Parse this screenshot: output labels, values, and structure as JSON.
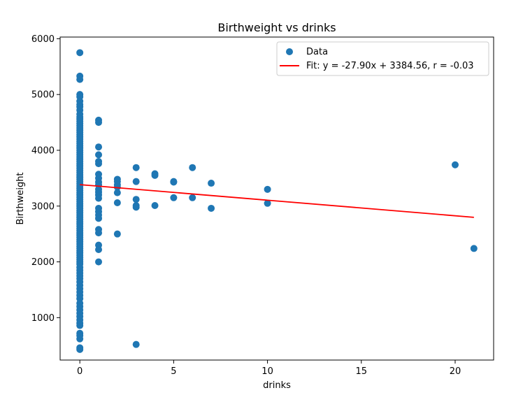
{
  "chart_data": {
    "type": "scatter",
    "title": "Birthweight vs drinks",
    "xlabel": "drinks",
    "ylabel": "Birthweight",
    "xlim": [
      -1.05,
      22.05
    ],
    "ylim": [
      240,
      6030
    ],
    "xticks": [
      0,
      5,
      10,
      15,
      20
    ],
    "yticks": [
      1000,
      2000,
      3000,
      4000,
      5000,
      6000
    ],
    "grid": false,
    "legend_position": "top-right",
    "colors": {
      "scatter": "#1f77b4",
      "fit": "#ff0000"
    },
    "series": [
      {
        "name": "Data",
        "kind": "scatter",
        "points": [
          [
            0,
            5750
          ],
          [
            0,
            5330
          ],
          [
            0,
            5270
          ],
          [
            0,
            5000
          ],
          [
            0,
            4960
          ],
          [
            0,
            4880
          ],
          [
            0,
            4820
          ],
          [
            0,
            4780
          ],
          [
            0,
            4720
          ],
          [
            0,
            4650
          ],
          [
            0,
            4600
          ],
          [
            0,
            4560
          ],
          [
            0,
            4520
          ],
          [
            0,
            4480
          ],
          [
            0,
            4440
          ],
          [
            0,
            4400
          ],
          [
            0,
            4360
          ],
          [
            0,
            4320
          ],
          [
            0,
            4280
          ],
          [
            0,
            4240
          ],
          [
            0,
            4200
          ],
          [
            0,
            4160
          ],
          [
            0,
            4120
          ],
          [
            0,
            4080
          ],
          [
            0,
            4040
          ],
          [
            0,
            4000
          ],
          [
            0,
            3960
          ],
          [
            0,
            3920
          ],
          [
            0,
            3880
          ],
          [
            0,
            3840
          ],
          [
            0,
            3800
          ],
          [
            0,
            3760
          ],
          [
            0,
            3720
          ],
          [
            0,
            3680
          ],
          [
            0,
            3640
          ],
          [
            0,
            3600
          ],
          [
            0,
            3560
          ],
          [
            0,
            3520
          ],
          [
            0,
            3480
          ],
          [
            0,
            3440
          ],
          [
            0,
            3400
          ],
          [
            0,
            3360
          ],
          [
            0,
            3320
          ],
          [
            0,
            3280
          ],
          [
            0,
            3240
          ],
          [
            0,
            3200
          ],
          [
            0,
            3160
          ],
          [
            0,
            3120
          ],
          [
            0,
            3080
          ],
          [
            0,
            3040
          ],
          [
            0,
            3000
          ],
          [
            0,
            2960
          ],
          [
            0,
            2920
          ],
          [
            0,
            2880
          ],
          [
            0,
            2840
          ],
          [
            0,
            2800
          ],
          [
            0,
            2760
          ],
          [
            0,
            2720
          ],
          [
            0,
            2680
          ],
          [
            0,
            2640
          ],
          [
            0,
            2600
          ],
          [
            0,
            2560
          ],
          [
            0,
            2520
          ],
          [
            0,
            2480
          ],
          [
            0,
            2440
          ],
          [
            0,
            2400
          ],
          [
            0,
            2360
          ],
          [
            0,
            2320
          ],
          [
            0,
            2280
          ],
          [
            0,
            2240
          ],
          [
            0,
            2200
          ],
          [
            0,
            2160
          ],
          [
            0,
            2120
          ],
          [
            0,
            2080
          ],
          [
            0,
            2040
          ],
          [
            0,
            2000
          ],
          [
            0,
            1960
          ],
          [
            0,
            1900
          ],
          [
            0,
            1850
          ],
          [
            0,
            1800
          ],
          [
            0,
            1750
          ],
          [
            0,
            1700
          ],
          [
            0,
            1640
          ],
          [
            0,
            1580
          ],
          [
            0,
            1520
          ],
          [
            0,
            1460
          ],
          [
            0,
            1400
          ],
          [
            0,
            1340
          ],
          [
            0,
            1260
          ],
          [
            0,
            1200
          ],
          [
            0,
            1140
          ],
          [
            0,
            1080
          ],
          [
            0,
            1020
          ],
          [
            0,
            960
          ],
          [
            0,
            900
          ],
          [
            0,
            860
          ],
          [
            0,
            720
          ],
          [
            0,
            680
          ],
          [
            0,
            620
          ],
          [
            0,
            460
          ],
          [
            0,
            430
          ],
          [
            1,
            4540
          ],
          [
            1,
            4500
          ],
          [
            1,
            4060
          ],
          [
            1,
            3920
          ],
          [
            1,
            3800
          ],
          [
            1,
            3760
          ],
          [
            1,
            3570
          ],
          [
            1,
            3500
          ],
          [
            1,
            3430
          ],
          [
            1,
            3380
          ],
          [
            1,
            3300
          ],
          [
            1,
            3250
          ],
          [
            1,
            3200
          ],
          [
            1,
            3140
          ],
          [
            1,
            2960
          ],
          [
            1,
            2900
          ],
          [
            1,
            2840
          ],
          [
            1,
            2780
          ],
          [
            1,
            2580
          ],
          [
            1,
            2520
          ],
          [
            1,
            2300
          ],
          [
            1,
            2220
          ],
          [
            1,
            2000
          ],
          [
            2,
            3480
          ],
          [
            2,
            3440
          ],
          [
            2,
            3380
          ],
          [
            2,
            3340
          ],
          [
            2,
            3240
          ],
          [
            2,
            3060
          ],
          [
            2,
            2500
          ],
          [
            3,
            3690
          ],
          [
            3,
            3440
          ],
          [
            3,
            3120
          ],
          [
            3,
            3010
          ],
          [
            3,
            2980
          ],
          [
            3,
            520
          ],
          [
            4,
            3580
          ],
          [
            4,
            3550
          ],
          [
            4,
            3010
          ],
          [
            5,
            3440
          ],
          [
            5,
            3430
          ],
          [
            5,
            3150
          ],
          [
            6,
            3690
          ],
          [
            6,
            3150
          ],
          [
            7,
            3410
          ],
          [
            7,
            2960
          ],
          [
            10,
            3300
          ],
          [
            10,
            3050
          ],
          [
            20,
            3740
          ],
          [
            21,
            2240
          ]
        ]
      },
      {
        "name": "Fit: y = -27.90x + 3384.56, r = -0.03",
        "kind": "line",
        "slope": -27.9,
        "intercept": 3384.56,
        "x": [
          0,
          21
        ]
      }
    ]
  }
}
